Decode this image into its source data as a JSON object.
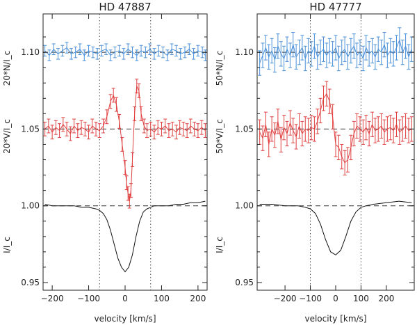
{
  "chart_data": [
    {
      "type": "line",
      "title": "HD 47887",
      "xlabel": "velocity [km/s]",
      "ylabels": [
        "I/I_c",
        "20*V/I_c",
        "20*N/I_c"
      ],
      "xlim": [
        -225,
        225
      ],
      "ylim": [
        0.945,
        1.125
      ],
      "xticks": [
        -200,
        -100,
        0,
        100,
        200
      ],
      "xtick_labels": [
        "−200",
        "−100",
        "0",
        "100",
        "200"
      ],
      "yticks": [
        0.95,
        1.0,
        1.05,
        1.1
      ],
      "ytick_labels": [
        "0.95",
        "1.00",
        "1.05",
        "1.10"
      ],
      "vlines": [
        -70,
        70
      ],
      "hlines": [
        1.0,
        1.05,
        1.1
      ],
      "series": [
        {
          "name": "N",
          "color": "#4a90d9",
          "errorbars": true,
          "err": 0.0035,
          "x": [
            -220,
            -208,
            -196,
            -184,
            -172,
            -160,
            -148,
            -136,
            -124,
            -112,
            -100,
            -88,
            -76,
            -64,
            -52,
            -40,
            -28,
            -16,
            -4,
            8,
            20,
            32,
            44,
            56,
            68,
            80,
            92,
            104,
            116,
            128,
            140,
            152,
            164,
            176,
            188,
            200,
            212,
            220
          ],
          "y": [
            1.101,
            1.098,
            1.102,
            1.099,
            1.101,
            1.103,
            1.099,
            1.1,
            1.102,
            1.098,
            1.101,
            1.1,
            1.099,
            1.101,
            1.102,
            1.098,
            1.1,
            1.101,
            1.099,
            1.102,
            1.1,
            1.098,
            1.101,
            1.1,
            1.102,
            1.099,
            1.101,
            1.1,
            1.098,
            1.102,
            1.101,
            1.099,
            1.1,
            1.102,
            1.099,
            1.101,
            1.1,
            1.098
          ]
        },
        {
          "name": "V",
          "color": "#e04040",
          "errorbars": true,
          "err": 0.0045,
          "x": [
            -220,
            -210,
            -200,
            -190,
            -180,
            -170,
            -160,
            -150,
            -140,
            -130,
            -120,
            -110,
            -100,
            -90,
            -80,
            -70,
            -60,
            -50,
            -40,
            -32,
            -24,
            -16,
            -8,
            0,
            4,
            8,
            12,
            16,
            20,
            26,
            32,
            38,
            44,
            52,
            60,
            70,
            80,
            90,
            100,
            110,
            120,
            130,
            140,
            150,
            160,
            170,
            180,
            190,
            200,
            210,
            220
          ],
          "y": [
            1.05,
            1.052,
            1.048,
            1.051,
            1.049,
            1.053,
            1.05,
            1.047,
            1.052,
            1.049,
            1.051,
            1.05,
            1.048,
            1.052,
            1.05,
            1.049,
            1.052,
            1.058,
            1.068,
            1.072,
            1.066,
            1.055,
            1.04,
            1.025,
            1.015,
            1.008,
            1.003,
            1.01,
            1.03,
            1.06,
            1.078,
            1.075,
            1.06,
            1.052,
            1.049,
            1.05,
            1.048,
            1.051,
            1.05,
            1.052,
            1.049,
            1.05,
            1.048,
            1.051,
            1.05,
            1.049,
            1.052,
            1.05,
            1.049,
            1.051,
            1.049
          ]
        },
        {
          "name": "I",
          "color": "#111111",
          "errorbars": false,
          "x": [
            -220,
            -200,
            -180,
            -160,
            -140,
            -120,
            -100,
            -80,
            -70,
            -60,
            -50,
            -40,
            -30,
            -20,
            -10,
            0,
            10,
            20,
            30,
            40,
            50,
            60,
            70,
            80,
            100,
            120,
            140,
            160,
            180,
            200,
            220
          ],
          "y": [
            1.001,
            1.0,
            1.0,
            1.0,
            1.0,
            0.999,
            0.999,
            0.998,
            0.997,
            0.995,
            0.991,
            0.984,
            0.975,
            0.966,
            0.96,
            0.957,
            0.96,
            0.968,
            0.98,
            0.99,
            0.996,
            0.998,
            0.999,
            1.0,
            1.0,
            1.0,
            1.001,
            1.001,
            1.002,
            1.002,
            1.003
          ]
        }
      ]
    },
    {
      "type": "line",
      "title": "HD 47777",
      "xlabel": "velocity [km/s]",
      "ylabels": [
        "I/I_c",
        "50*V/I_c",
        "50*N/I_c"
      ],
      "xlim": [
        -310,
        310
      ],
      "ylim": [
        0.945,
        1.125
      ],
      "xticks": [
        -200,
        -100,
        0,
        100,
        200
      ],
      "xtick_labels": [
        "−200",
        "−100",
        "0",
        "100",
        "200"
      ],
      "yticks": [
        0.95,
        1.0,
        1.05,
        1.1
      ],
      "ytick_labels": [
        "0.95",
        "1.00",
        "1.05",
        "1.10"
      ],
      "vlines": [
        -100,
        100
      ],
      "hlines": [
        1.0,
        1.05,
        1.1
      ],
      "series": [
        {
          "name": "N",
          "color": "#4a90d9",
          "errorbars": true,
          "err": 0.008,
          "x": [
            -300,
            -288,
            -276,
            -264,
            -252,
            -240,
            -228,
            -216,
            -204,
            -192,
            -180,
            -168,
            -156,
            -144,
            -132,
            -120,
            -108,
            -96,
            -84,
            -72,
            -60,
            -48,
            -36,
            -24,
            -12,
            0,
            12,
            24,
            36,
            48,
            60,
            72,
            84,
            96,
            108,
            120,
            132,
            144,
            156,
            168,
            180,
            192,
            204,
            216,
            228,
            240,
            252,
            264,
            276,
            288,
            300
          ],
          "y": [
            1.093,
            1.098,
            1.103,
            1.097,
            1.101,
            1.095,
            1.104,
            1.099,
            1.096,
            1.102,
            1.098,
            1.105,
            1.097,
            1.1,
            1.103,
            1.096,
            1.101,
            1.099,
            1.104,
            1.097,
            1.1,
            1.102,
            1.098,
            1.101,
            1.099,
            1.103,
            1.096,
            1.1,
            1.102,
            1.097,
            1.101,
            1.104,
            1.098,
            1.1,
            1.096,
            1.103,
            1.099,
            1.101,
            1.097,
            1.102,
            1.1,
            1.105,
            1.098,
            1.101,
            1.099,
            1.103,
            1.108,
            1.1,
            1.104,
            1.097,
            1.102
          ]
        },
        {
          "name": "V",
          "color": "#e04040",
          "errorbars": true,
          "err": 0.008,
          "x": [
            -300,
            -288,
            -276,
            -264,
            -252,
            -240,
            -228,
            -216,
            -204,
            -192,
            -180,
            -168,
            -156,
            -144,
            -132,
            -120,
            -108,
            -96,
            -84,
            -72,
            -60,
            -48,
            -36,
            -24,
            -12,
            0,
            12,
            24,
            36,
            48,
            60,
            72,
            84,
            96,
            108,
            120,
            132,
            144,
            156,
            168,
            180,
            192,
            204,
            216,
            228,
            240,
            252,
            264,
            276,
            288,
            300
          ],
          "y": [
            1.048,
            1.044,
            1.053,
            1.04,
            1.05,
            1.046,
            1.055,
            1.043,
            1.051,
            1.047,
            1.054,
            1.049,
            1.045,
            1.052,
            1.047,
            1.05,
            1.049,
            1.051,
            1.05,
            1.055,
            1.062,
            1.07,
            1.073,
            1.068,
            1.058,
            1.04,
            1.038,
            1.032,
            1.028,
            1.03,
            1.038,
            1.047,
            1.052,
            1.05,
            1.048,
            1.051,
            1.047,
            1.053,
            1.049,
            1.05,
            1.052,
            1.048,
            1.05,
            1.051,
            1.049,
            1.053,
            1.048,
            1.05,
            1.052,
            1.049,
            1.05
          ]
        },
        {
          "name": "I",
          "color": "#111111",
          "errorbars": false,
          "x": [
            -300,
            -250,
            -200,
            -150,
            -120,
            -100,
            -80,
            -60,
            -40,
            -20,
            0,
            20,
            40,
            60,
            80,
            100,
            120,
            150,
            200,
            250,
            300
          ],
          "y": [
            1.001,
            1.001,
            1.0,
            1.0,
            0.999,
            0.998,
            0.995,
            0.988,
            0.978,
            0.97,
            0.968,
            0.971,
            0.98,
            0.99,
            0.996,
            0.999,
            1.0,
            1.001,
            1.002,
            1.003,
            1.002
          ]
        }
      ]
    }
  ]
}
